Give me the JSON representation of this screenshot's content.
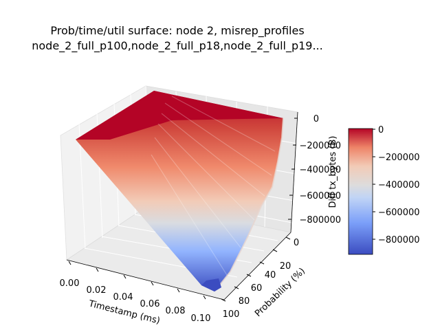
{
  "chart_data": {
    "type": "surface",
    "title_line1": "Prob/time/util surface: node 2, misrep_profiles",
    "title_line2": "node_2_full_p100,node_2_full_p18,node_2_full_p19...",
    "xlabel": "Timestamp (ms)",
    "ylabel": "Probability (%)",
    "zlabel": "Diff tx_bytes (B)",
    "x_ticks": [
      "0.00",
      "0.02",
      "0.04",
      "0.06",
      "0.08",
      "0.10"
    ],
    "y_ticks": [
      "0",
      "20",
      "40",
      "60",
      "80",
      "100"
    ],
    "z_ticks": [
      "0",
      "−200000",
      "−400000",
      "−600000",
      "−800000"
    ],
    "colorbar_ticks": [
      "0",
      "−200000",
      "−400000",
      "−600000",
      "−800000"
    ],
    "colormap": "coolwarm",
    "xlim": [
      0,
      0.1
    ],
    "ylim": [
      0,
      100
    ],
    "zlim": [
      -900000,
      0
    ],
    "surface_extremes": [
      {
        "timestamp_ms": 0.0,
        "probability_pct": 0,
        "diff_tx_bytes": 0
      },
      {
        "timestamp_ms": 0.0,
        "probability_pct": 100,
        "diff_tx_bytes": 0
      },
      {
        "timestamp_ms": 0.1,
        "probability_pct": 0,
        "diff_tx_bytes": 0
      },
      {
        "timestamp_ms": 0.1,
        "probability_pct": 100,
        "diff_tx_bytes": -880000
      }
    ]
  }
}
